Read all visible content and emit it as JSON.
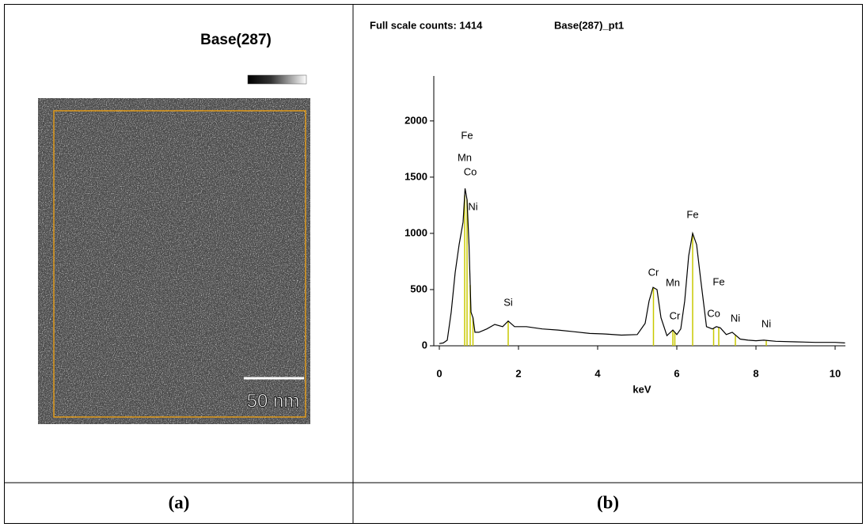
{
  "panel_a": {
    "title": "Base(287)",
    "scale_bar": "50 nm",
    "caption": "(a)"
  },
  "panel_b": {
    "caption": "(b)"
  },
  "chart_data": {
    "type": "line",
    "header_left": "Full scale counts: 1414",
    "header_right": "Base(287)_pt1",
    "x_label": "keV",
    "color": "#000000",
    "marker_color": "#c8c800",
    "xlim": [
      -0.14,
      10.26
    ],
    "ylim": [
      0,
      2400
    ],
    "xticks": [
      0,
      2,
      4,
      6,
      8,
      10
    ],
    "yticks": [
      0,
      500,
      1000,
      1500,
      2000
    ],
    "x": [
      0,
      0.1,
      0.2,
      0.3,
      0.4,
      0.5,
      0.55,
      0.6,
      0.65,
      0.7,
      0.75,
      0.8,
      0.85,
      0.9,
      1.0,
      1.2,
      1.4,
      1.6,
      1.74,
      1.9,
      2.2,
      2.6,
      3.0,
      3.4,
      3.8,
      4.2,
      4.6,
      5.0,
      5.2,
      5.3,
      5.4,
      5.5,
      5.6,
      5.75,
      5.9,
      6.0,
      6.1,
      6.2,
      6.3,
      6.4,
      6.5,
      6.6,
      6.75,
      6.9,
      7.0,
      7.1,
      7.25,
      7.4,
      7.5,
      7.6,
      7.8,
      8.0,
      8.2,
      8.5,
      9.0,
      9.5,
      10.0,
      10.25
    ],
    "values": [
      20,
      25,
      50,
      300,
      650,
      900,
      1000,
      1100,
      1400,
      1300,
      900,
      300,
      250,
      120,
      120,
      150,
      190,
      170,
      220,
      170,
      170,
      150,
      140,
      125,
      110,
      105,
      95,
      100,
      200,
      400,
      520,
      500,
      250,
      90,
      140,
      100,
      150,
      400,
      800,
      1000,
      900,
      600,
      170,
      150,
      170,
      160,
      100,
      120,
      90,
      60,
      50,
      45,
      50,
      40,
      35,
      30,
      30,
      25
    ],
    "peak_labels": [
      {
        "text": "Fe",
        "x": 0.7,
        "y": 1866
      },
      {
        "text": "Mn",
        "x": 0.64,
        "y": 1669
      },
      {
        "text": "Co",
        "x": 0.78,
        "y": 1542
      },
      {
        "text": "Ni",
        "x": 0.85,
        "y": 1232
      },
      {
        "text": "Si",
        "x": 1.74,
        "y": 380
      },
      {
        "text": "Cr",
        "x": 5.41,
        "y": 648
      },
      {
        "text": "Mn",
        "x": 5.9,
        "y": 556
      },
      {
        "text": "Cr",
        "x": 5.95,
        "y": 260
      },
      {
        "text": "Fe",
        "x": 6.4,
        "y": 1162
      },
      {
        "text": "Fe",
        "x": 7.06,
        "y": 563
      },
      {
        "text": "Co",
        "x": 6.93,
        "y": 282
      },
      {
        "text": "Ni",
        "x": 7.48,
        "y": 240
      },
      {
        "text": "Ni",
        "x": 8.26,
        "y": 190
      }
    ]
  }
}
